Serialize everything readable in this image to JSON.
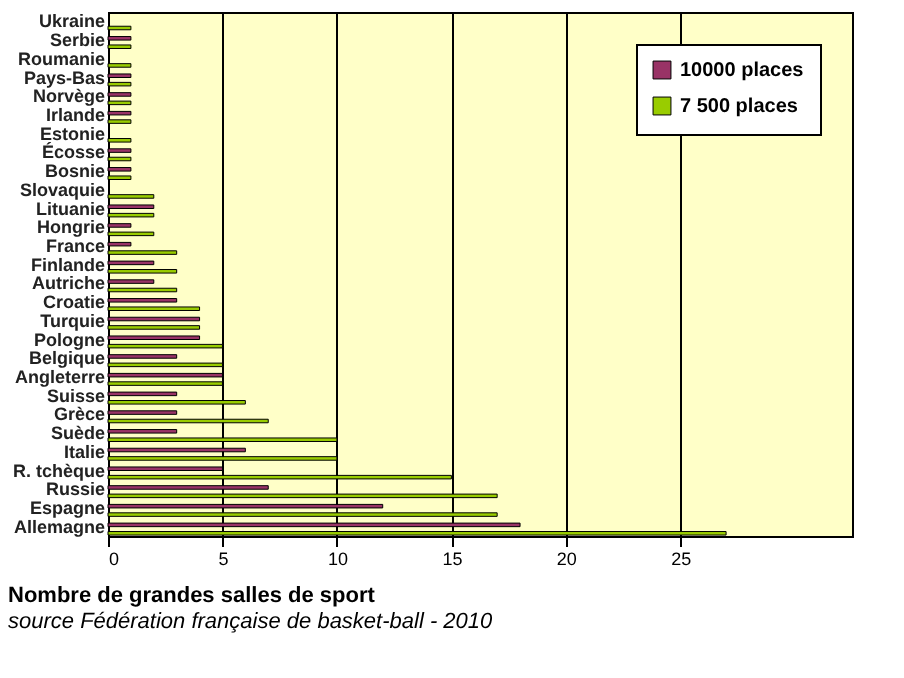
{
  "chart_data": {
    "type": "bar",
    "orientation": "horizontal",
    "title": "Nombre de grandes salles de sport",
    "subtitle": "source Fédération française de basket-ball - 2010",
    "categories": [
      "Ukraine",
      "Serbie",
      "Roumanie",
      "Pays-Bas",
      "Norvège",
      "Irlande",
      "Estonie",
      "Écosse",
      "Bosnie",
      "Slovaquie",
      "Lituanie",
      "Hongrie",
      "France",
      "Finlande",
      "Autriche",
      "Croatie",
      "Turquie",
      "Pologne",
      "Belgique",
      "Angleterre",
      "Suisse",
      "Grèce",
      "Suède",
      "Italie",
      "R. tchèque",
      "Russie",
      "Espagne",
      "Allemagne"
    ],
    "series": [
      {
        "name": "10000 places",
        "color": "#993366",
        "values": [
          null,
          1,
          null,
          1,
          1,
          1,
          null,
          1,
          1,
          null,
          2,
          1,
          1,
          2,
          2,
          3,
          4,
          4,
          3,
          5,
          3,
          3,
          3,
          6,
          5,
          7,
          12,
          18
        ]
      },
      {
        "name": "7 500 places",
        "color": "#99cc00",
        "values": [
          1,
          1,
          1,
          1,
          1,
          1,
          1,
          1,
          1,
          2,
          2,
          2,
          3,
          3,
          3,
          4,
          4,
          5,
          5,
          5,
          6,
          7,
          10,
          10,
          15,
          17,
          17,
          27
        ]
      }
    ],
    "xlim": [
      0,
      32.5
    ],
    "xticks": [
      0,
      5,
      10,
      15,
      20,
      25
    ],
    "grid": "x",
    "legend": "top right"
  }
}
